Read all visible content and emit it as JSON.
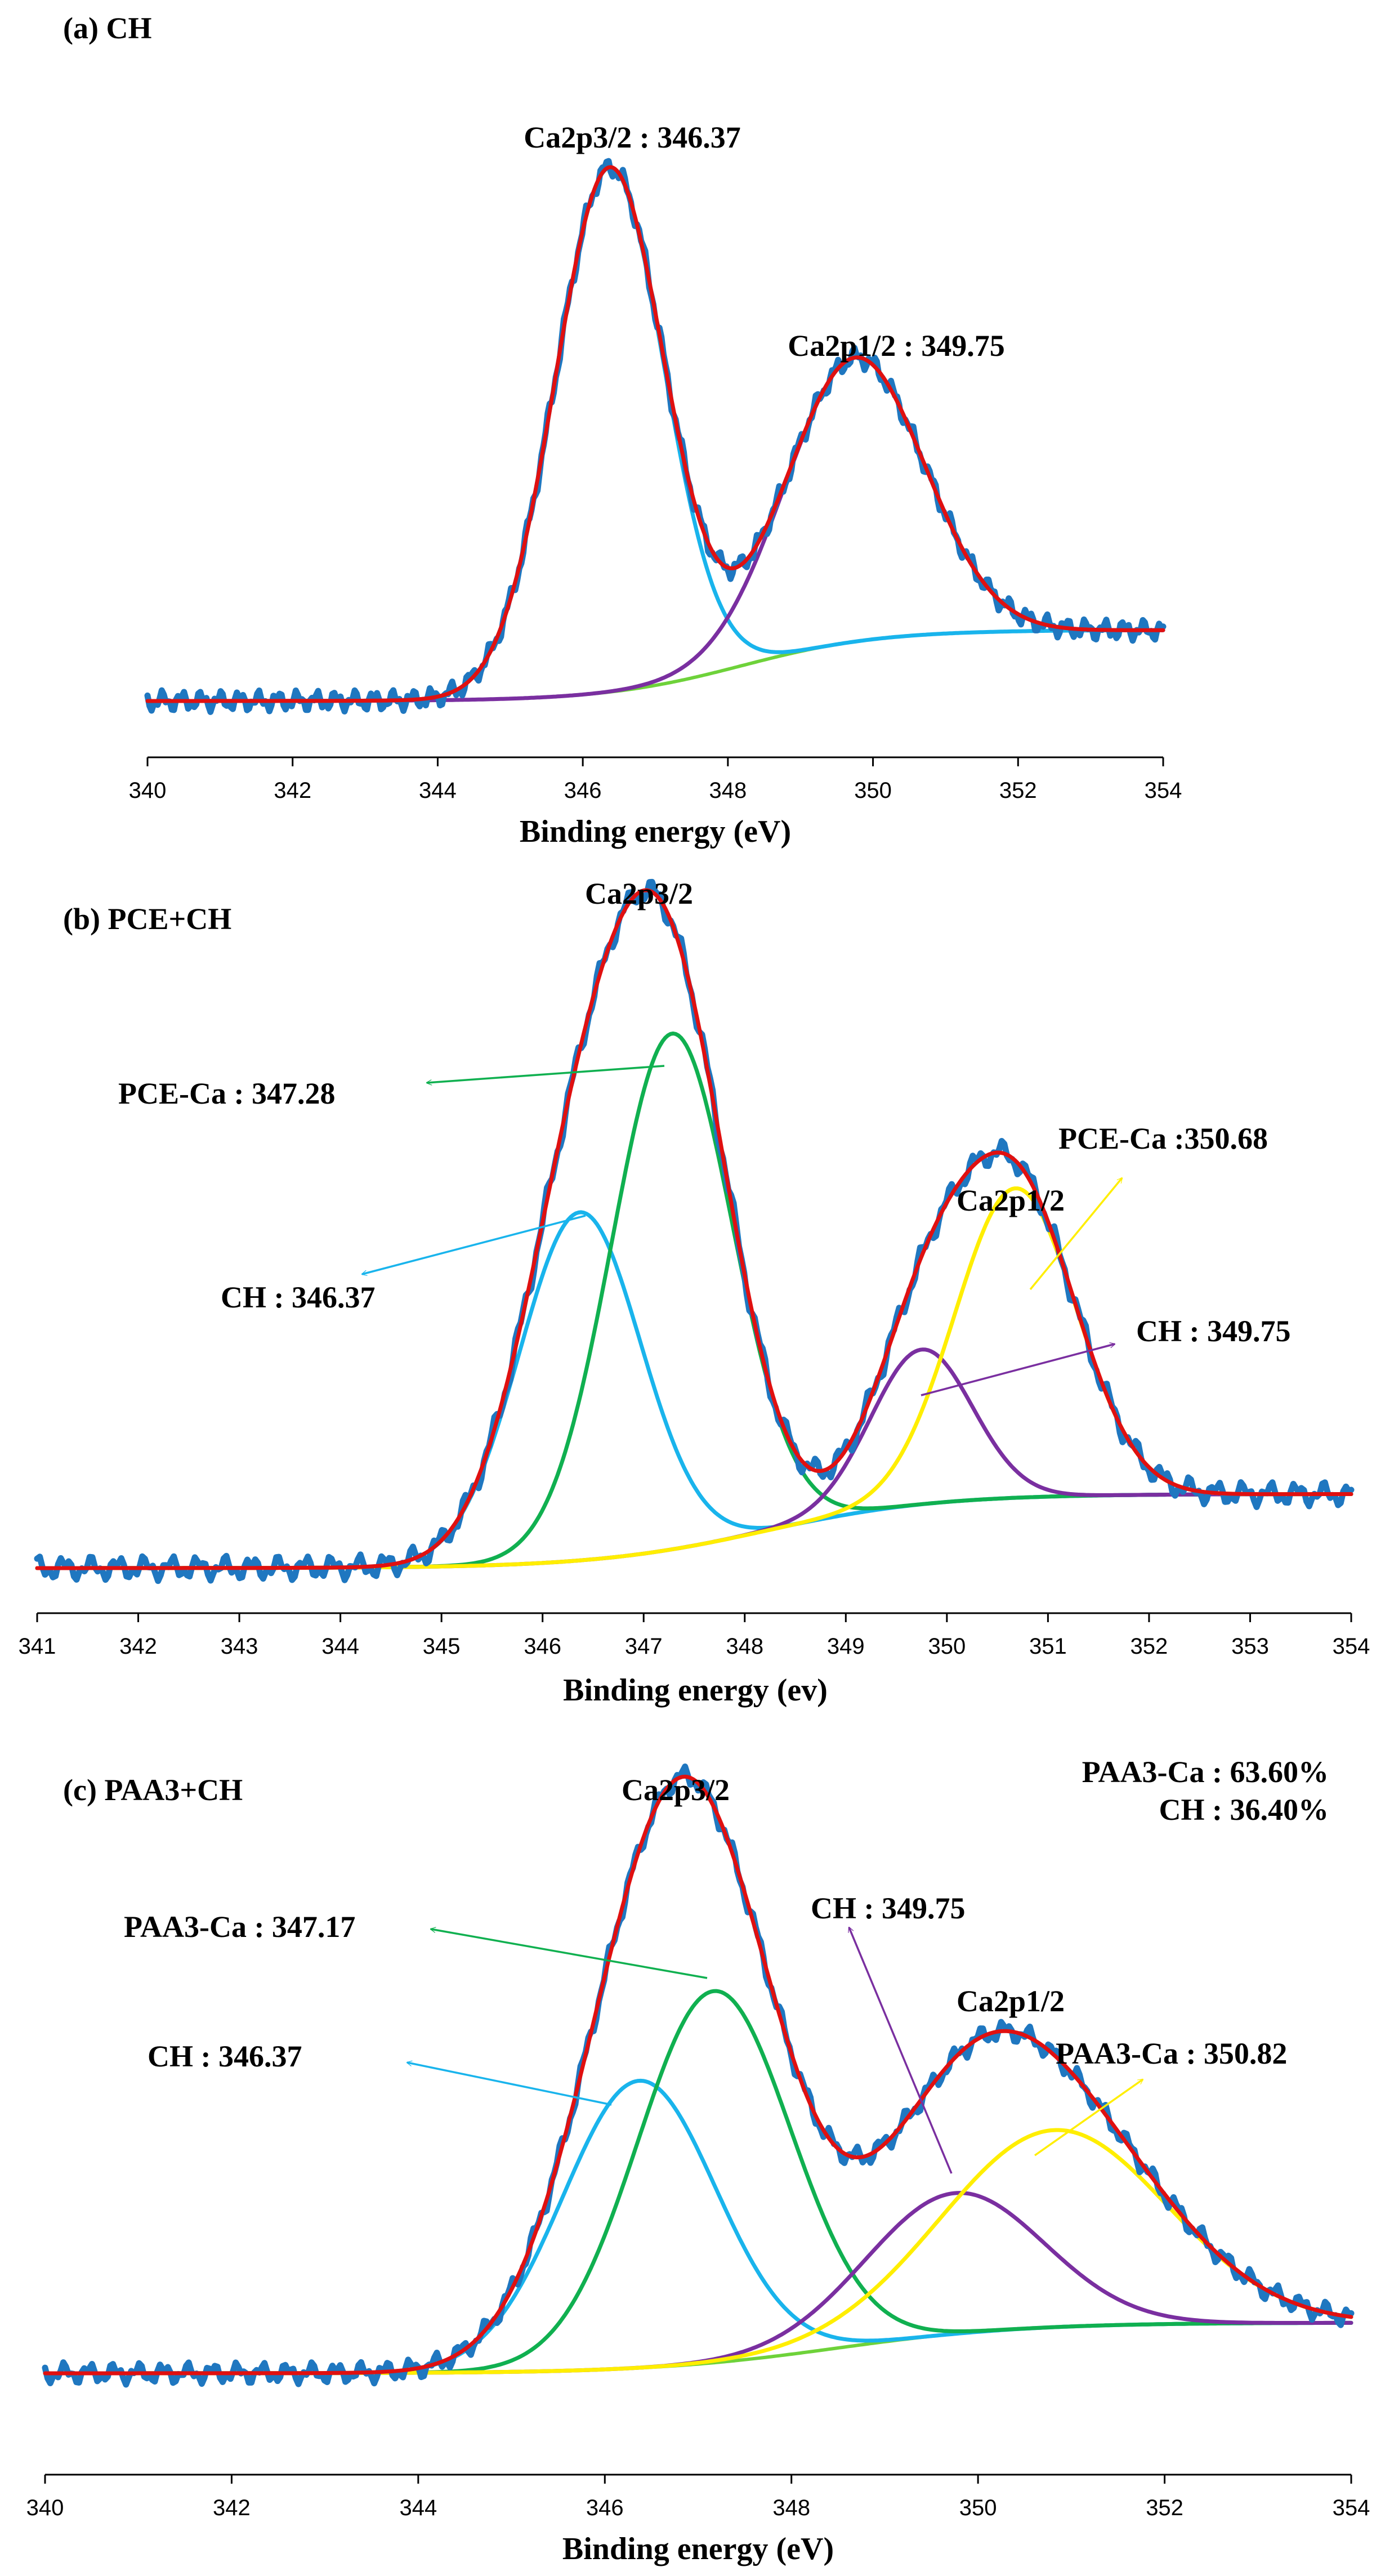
{
  "chart_data": [
    {
      "type": "line",
      "title": "(a) CH",
      "xlabel": "Binding energy (eV)",
      "ylabel": "",
      "xlim": [
        340,
        354
      ],
      "ylim": [
        0,
        1
      ],
      "xticks": [
        "340",
        "342",
        "344",
        "346",
        "348",
        "350",
        "352",
        "354"
      ],
      "grid": false,
      "peaks": [
        {
          "label": "Ca2p3/2 : 346.37",
          "center": 346.37,
          "height": 0.96,
          "sigma": 0.75
        },
        {
          "label": "Ca2p1/2 : 349.75",
          "center": 349.75,
          "height": 0.52,
          "sigma": 0.95
        }
      ],
      "series": [
        {
          "name": "raw",
          "color": "#1f77c0",
          "role": "raw"
        },
        {
          "name": "fit",
          "color": "#e01010",
          "role": "fit"
        },
        {
          "name": "Ca2p3/2",
          "color": "#19b4ec",
          "role": "peak",
          "peak": 0
        },
        {
          "name": "Ca2p1/2",
          "color": "#7a2fa0",
          "role": "peak",
          "peak": 1
        },
        {
          "name": "background",
          "color": "#6ed23a",
          "role": "background"
        }
      ],
      "background": {
        "low": 0.0,
        "high": 0.13,
        "center": 348.2,
        "width": 0.95
      },
      "annotations": []
    },
    {
      "type": "line",
      "title": "(b) PCE+CH",
      "xlabel": "Binding energy (ev)",
      "ylabel": "",
      "xlim": [
        341,
        354
      ],
      "ylim": [
        0,
        1
      ],
      "xticks": [
        "341",
        "342",
        "343",
        "344",
        "345",
        "346",
        "347",
        "348",
        "349",
        "350",
        "351",
        "352",
        "353",
        "354"
      ],
      "grid": false,
      "peaks": [
        {
          "label": "CH : 346.37",
          "center": 346.37,
          "height": 0.54,
          "sigma": 0.6
        },
        {
          "label": "PCE-Ca : 347.28",
          "center": 347.28,
          "height": 0.8,
          "sigma": 0.6
        },
        {
          "label": "CH : 349.75",
          "center": 349.75,
          "height": 0.24,
          "sigma": 0.5
        },
        {
          "label": "PCE-Ca :350.68",
          "center": 350.68,
          "height": 0.48,
          "sigma": 0.6
        }
      ],
      "series": [
        {
          "name": "raw",
          "color": "#1f77c0",
          "role": "raw"
        },
        {
          "name": "fit",
          "color": "#e01010",
          "role": "fit"
        },
        {
          "name": "CH 346.37",
          "color": "#19b4ec",
          "role": "peak",
          "peak": 0
        },
        {
          "name": "PCE-Ca 347.28",
          "color": "#10b050",
          "role": "peak",
          "peak": 1
        },
        {
          "name": "CH 349.75",
          "color": "#7a2fa0",
          "role": "peak",
          "peak": 2
        },
        {
          "name": "PCE-Ca 350.68",
          "color": "#ffee00",
          "role": "peak",
          "peak": 3
        },
        {
          "name": "background",
          "color": "#6ed23a",
          "role": "background"
        }
      ],
      "background": {
        "low": 0.0,
        "high": 0.115,
        "center": 348.2,
        "width": 0.85
      },
      "annotations": [
        {
          "text": "Ca2p3/2"
        },
        {
          "text": "Ca2p1/2"
        },
        {
          "text": "PCE-Ca  : 347.28",
          "color": "#10b050"
        },
        {
          "text": "CH : 346.37",
          "color": "#19b4ec"
        },
        {
          "text": "PCE-Ca :350.68",
          "color": "#ffee00"
        },
        {
          "text": "CH : 349.75",
          "color": "#7a2fa0"
        }
      ]
    },
    {
      "type": "line",
      "title": "(c) PAA3+CH",
      "xlabel": "Binding energy (eV)",
      "ylabel": "",
      "xlim": [
        340,
        354
      ],
      "ylim": [
        0,
        1
      ],
      "xticks": [
        "340",
        "342",
        "344",
        "346",
        "348",
        "350",
        "352",
        "354"
      ],
      "grid": false,
      "peaks": [
        {
          "label": "CH : 346.37",
          "center": 346.37,
          "height": 0.51,
          "sigma": 0.82
        },
        {
          "label": "PAA3-Ca : 347.17",
          "center": 347.17,
          "height": 0.66,
          "sigma": 0.82
        },
        {
          "label": "CH : 349.75",
          "center": 349.75,
          "height": 0.25,
          "sigma": 0.95
        },
        {
          "label": "PAA3-Ca : 350.82",
          "center": 350.82,
          "height": 0.35,
          "sigma": 1.2
        }
      ],
      "series": [
        {
          "name": "raw",
          "color": "#1f77c0",
          "role": "raw"
        },
        {
          "name": "fit",
          "color": "#e01010",
          "role": "fit"
        },
        {
          "name": "CH 346.37",
          "color": "#19b4ec",
          "role": "peak",
          "peak": 0
        },
        {
          "name": "PAA3-Ca 347.17",
          "color": "#10b050",
          "role": "peak",
          "peak": 1
        },
        {
          "name": "CH 349.75",
          "color": "#7a2fa0",
          "role": "peak",
          "peak": 2
        },
        {
          "name": "PAA3-Ca 350.82",
          "color": "#ffee00",
          "role": "peak",
          "peak": 3
        },
        {
          "name": "background",
          "color": "#6ed23a",
          "role": "background"
        }
      ],
      "background": {
        "low": 0.0,
        "high": 0.09,
        "center": 348.5,
        "width": 1.0
      },
      "annotations": [
        {
          "text": "Ca2p3/2"
        },
        {
          "text": "Ca2p1/2"
        },
        {
          "text": "PAA3-Ca : 347.17",
          "color": "#10b050"
        },
        {
          "text": "CH : 346.37",
          "color": "#19b4ec"
        },
        {
          "text": "CH : 349.75",
          "color": "#7a2fa0"
        },
        {
          "text": "PAA3-Ca : 350.82",
          "color": "#ffee00"
        }
      ],
      "composition": [
        "PAA3-Ca : 63.60%",
        "CH : 36.40%"
      ]
    }
  ]
}
